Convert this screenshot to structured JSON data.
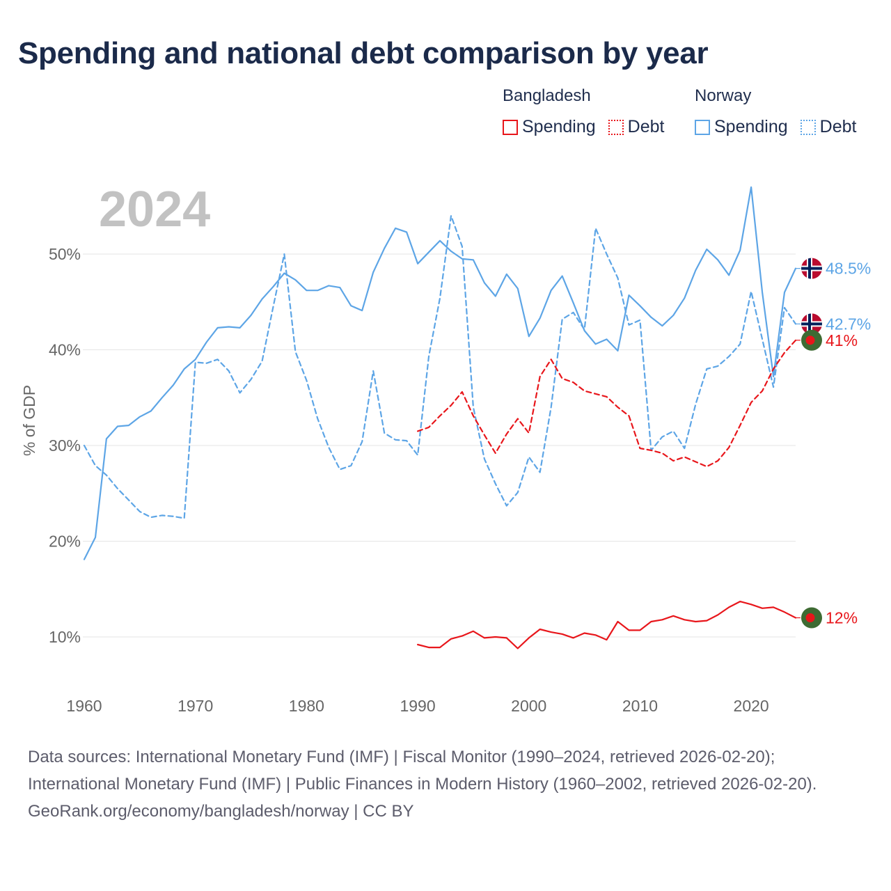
{
  "title": "Spending and national debt comparison by year",
  "year_label": "2024",
  "legend": [
    {
      "group": "Bangladesh",
      "items": [
        {
          "label": "Spending",
          "style": "solid"
        },
        {
          "label": "Debt",
          "style": "dotted"
        }
      ],
      "color": "#e8161b"
    },
    {
      "group": "Norway",
      "items": [
        {
          "label": "Spending",
          "style": "solid"
        },
        {
          "label": "Debt",
          "style": "dotted"
        }
      ],
      "color": "#5da5e6"
    }
  ],
  "footer": {
    "sources": "Data sources: International Monetary Fund (IMF) | Fiscal Monitor (1990–2024, retrieved 2026-02-20); International Monetary Fund (IMF) | Public Finances in Modern History (1960–2002, retrieved 2026-02-20).",
    "credit": "GeoRank.org/economy/bangladesh/norway | CC BY"
  },
  "chart_data": {
    "type": "line",
    "title": "Spending and national debt comparison by year",
    "xlabel": "",
    "ylabel": "% of GDP",
    "xlim": [
      1960,
      2024
    ],
    "ylim": [
      5,
      60
    ],
    "x_ticks": [
      1960,
      1970,
      1980,
      1990,
      2000,
      2010,
      2020
    ],
    "y_ticks": [
      10,
      20,
      30,
      40,
      50
    ],
    "y_tick_labels": [
      "10%",
      "20%",
      "30%",
      "40%",
      "50%"
    ],
    "colors": {
      "bangladesh": "#e8161b",
      "norway": "#5da5e6",
      "grid": "#e6e6e6",
      "axis_text": "#666666",
      "year_watermark": "#c2c2c2"
    },
    "series": [
      {
        "name": "Norway Spending",
        "country": "Norway",
        "metric": "Spending",
        "style": "solid",
        "color": "#5da5e6",
        "start_year": 1960,
        "values": [
          18.1,
          20.4,
          30.7,
          32.0,
          32.1,
          33.0,
          33.6,
          35.0,
          36.3,
          38.0,
          39.0,
          40.8,
          42.3,
          42.4,
          42.3,
          43.6,
          45.3,
          46.6,
          48.0,
          47.3,
          46.2,
          46.2,
          46.7,
          46.5,
          44.6,
          44.1,
          48.1,
          50.6,
          52.7,
          52.3,
          49.0,
          50.2,
          51.4,
          50.3,
          49.5,
          49.4,
          47.0,
          45.6,
          47.9,
          46.4,
          41.4,
          43.3,
          46.2,
          47.7,
          44.9,
          42.0,
          40.6,
          41.1,
          39.9,
          45.7,
          44.6,
          43.4,
          42.5,
          43.6,
          45.4,
          48.3,
          50.5,
          49.4,
          47.8,
          50.4,
          57.0,
          46.0,
          37.2,
          46.0,
          48.5
        ],
        "end_label": "48.5%"
      },
      {
        "name": "Norway Debt",
        "country": "Norway",
        "metric": "Debt",
        "style": "dashed",
        "color": "#5da5e6",
        "start_year": 1960,
        "values": [
          30.0,
          27.9,
          26.9,
          25.5,
          24.3,
          23.1,
          22.5,
          22.7,
          22.6,
          22.4,
          38.7,
          38.6,
          39.0,
          37.8,
          35.5,
          36.9,
          38.8,
          44.5,
          50.0,
          39.8,
          36.8,
          32.8,
          29.8,
          27.5,
          27.9,
          30.4,
          37.8,
          31.3,
          30.6,
          30.5,
          29.0,
          39.3,
          45.4,
          54.0,
          50.8,
          34.0,
          28.6,
          26.0,
          23.7,
          25.1,
          28.8,
          27.2,
          34.0,
          43.2,
          43.9,
          42.1,
          52.7,
          50.0,
          47.5,
          42.6,
          43.1,
          29.5,
          30.9,
          31.5,
          29.7,
          34.3,
          38.0,
          38.3,
          39.3,
          40.6,
          46.1,
          41.1,
          36.1,
          44.4,
          42.7
        ],
        "end_label": "42.7%"
      },
      {
        "name": "Bangladesh Debt",
        "country": "Bangladesh",
        "metric": "Debt",
        "style": "dashed",
        "color": "#e8161b",
        "start_year": 1990,
        "values": [
          31.5,
          31.9,
          33.1,
          34.2,
          35.6,
          33.1,
          31.1,
          29.2,
          31.2,
          32.8,
          31.3,
          37.2,
          39.0,
          37.0,
          36.6,
          35.7,
          35.4,
          35.1,
          34.0,
          33.1,
          29.7,
          29.5,
          29.2,
          28.4,
          28.8,
          28.3,
          27.8,
          28.4,
          29.8,
          32.1,
          34.5,
          35.7,
          38.0,
          39.7,
          41.0
        ],
        "end_label": "41%"
      },
      {
        "name": "Bangladesh Spending",
        "country": "Bangladesh",
        "metric": "Spending",
        "style": "solid",
        "color": "#e8161b",
        "start_year": 1990,
        "values": [
          9.2,
          8.9,
          8.9,
          9.8,
          10.1,
          10.6,
          9.9,
          10.0,
          9.9,
          8.8,
          9.9,
          10.8,
          10.5,
          10.3,
          9.9,
          10.4,
          10.2,
          9.7,
          11.6,
          10.7,
          10.7,
          11.6,
          11.8,
          12.2,
          11.8,
          11.6,
          11.7,
          12.3,
          13.1,
          13.7,
          13.4,
          13.0,
          13.1,
          12.6,
          12.0
        ],
        "end_label": "12%"
      }
    ]
  }
}
